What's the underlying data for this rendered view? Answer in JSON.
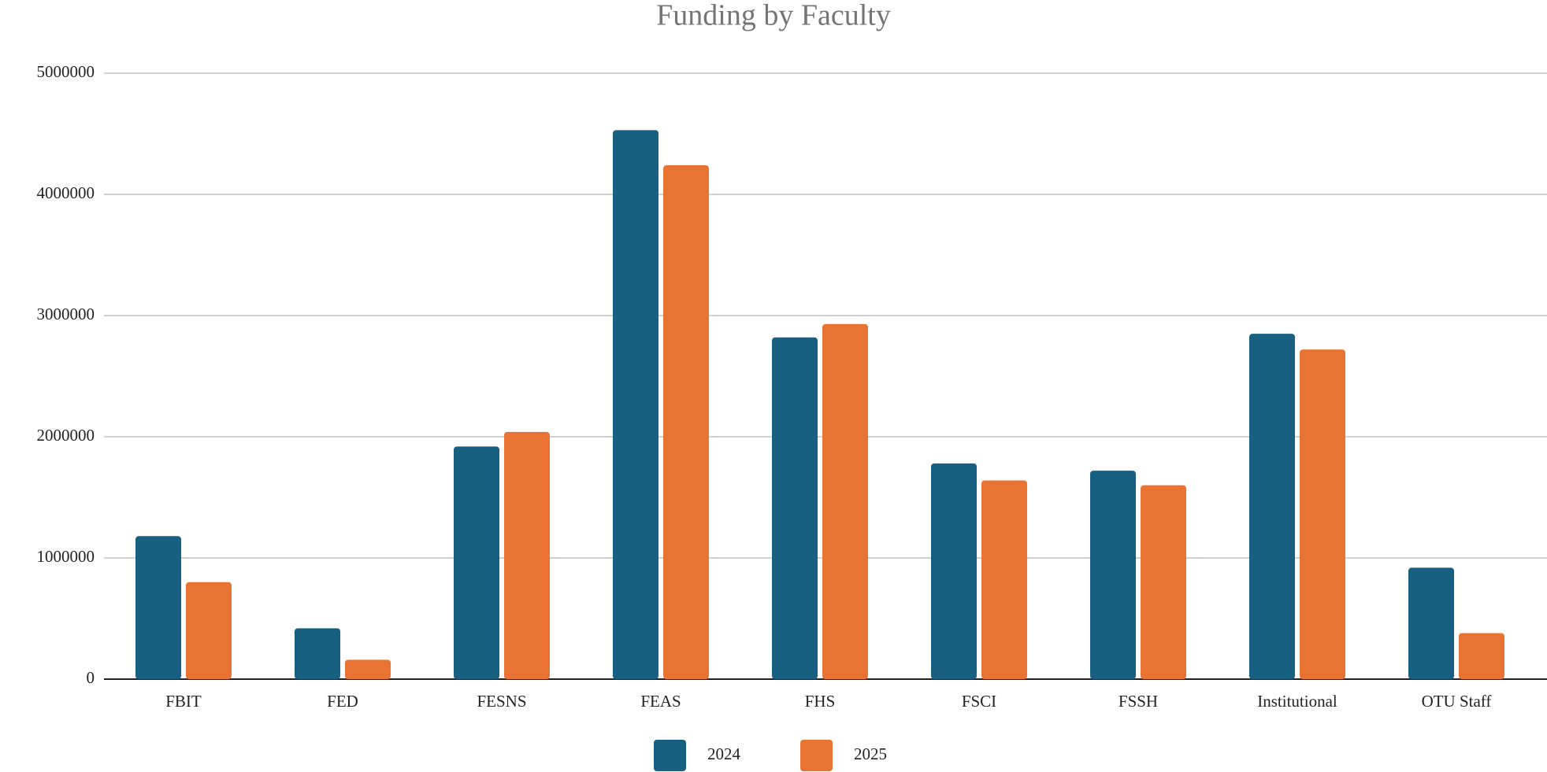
{
  "chart_data": {
    "type": "bar",
    "title": "Funding by Faculty",
    "categories": [
      "FBIT",
      "FED",
      "FESNS",
      "FEAS",
      "FHS",
      "FSCI",
      "FSSH",
      "Institutional",
      "OTU Staff"
    ],
    "series": [
      {
        "name": "2024",
        "color": "#176082",
        "values": [
          1180000,
          420000,
          1920000,
          4530000,
          2820000,
          1780000,
          1720000,
          2850000,
          920000
        ]
      },
      {
        "name": "2025",
        "color": "#e97333",
        "values": [
          800000,
          160000,
          2040000,
          4240000,
          2930000,
          1640000,
          1600000,
          2720000,
          380000
        ]
      }
    ],
    "ylim": [
      0,
      5000000
    ],
    "yticks": [
      0,
      1000000,
      2000000,
      3000000,
      4000000,
      5000000
    ],
    "grid": true,
    "legend": "bottom"
  }
}
